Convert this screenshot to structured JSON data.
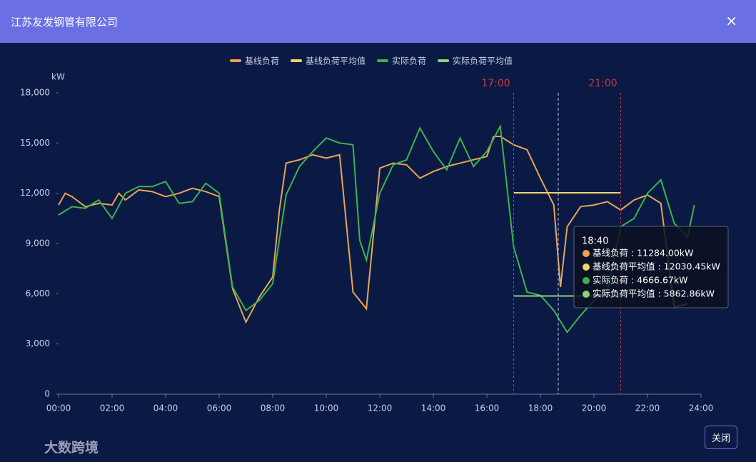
{
  "header": {
    "title": "江苏友发钢管有限公司",
    "close": "×"
  },
  "chart_data": {
    "type": "line",
    "y_unit": "kW",
    "series": [
      {
        "name": "基线负荷",
        "color": "#e8a552",
        "x": [
          0,
          0.25,
          0.5,
          1,
          1.5,
          2,
          2.25,
          2.5,
          3,
          3.5,
          4,
          4.5,
          5,
          5.5,
          6,
          6.5,
          7,
          7.5,
          8,
          8.25,
          8.5,
          9,
          9.5,
          10,
          10.5,
          11,
          11.5,
          12,
          12.5,
          13,
          13.5,
          14,
          14.5,
          15,
          15.5,
          16,
          16.25,
          16.5,
          17,
          17.5,
          18,
          18.5,
          18.75,
          19,
          19.5,
          20,
          20.5,
          21,
          21.5,
          22,
          22.5,
          23,
          23.5
        ],
        "values": [
          11300,
          12000,
          11800,
          11200,
          11400,
          11300,
          12000,
          11600,
          12200,
          12100,
          11800,
          12000,
          12300,
          12100,
          11800,
          6300,
          4300,
          5800,
          7000,
          11000,
          13800,
          14000,
          14300,
          14100,
          14300,
          6100,
          5100,
          13500,
          13800,
          13700,
          12900,
          13300,
          13600,
          13800,
          14000,
          14200,
          15400,
          15400,
          14900,
          14600,
          12900,
          11300,
          6400,
          10000,
          11200,
          11300,
          11500,
          11000,
          11600,
          11900,
          11400,
          5200,
          5400
        ]
      },
      {
        "name": "基线负荷平均值",
        "color": "#f0d46a",
        "x": [
          17,
          21
        ],
        "values": [
          12030.45,
          12030.45
        ]
      },
      {
        "name": "实际负荷",
        "color": "#3cb44b",
        "x": [
          0,
          0.5,
          1,
          1.5,
          2,
          2.5,
          3,
          3.5,
          4,
          4.5,
          5,
          5.5,
          6,
          6.5,
          7,
          7.5,
          8,
          8.5,
          9,
          9.5,
          10,
          10.5,
          11,
          11.25,
          11.5,
          12,
          12.5,
          13,
          13.5,
          14,
          14.5,
          15,
          15.5,
          16,
          16.5,
          17,
          17.5,
          18,
          18.5,
          19,
          19.5,
          20,
          20.5,
          21,
          21.5,
          22,
          22.5,
          23,
          23.5,
          23.75
        ],
        "values": [
          10700,
          11200,
          11100,
          11600,
          10500,
          12000,
          12400,
          12400,
          12700,
          11400,
          11500,
          12600,
          12000,
          6400,
          5000,
          5600,
          6600,
          11900,
          13600,
          14500,
          15300,
          15000,
          14900,
          9200,
          8000,
          12000,
          13700,
          14000,
          15900,
          14500,
          13400,
          15300,
          13600,
          14500,
          16000,
          8800,
          6100,
          5900,
          5000,
          3700,
          4700,
          5600,
          6200,
          10000,
          10500,
          12000,
          12800,
          10200,
          9400,
          11300
        ]
      },
      {
        "name": "实际负荷平均值",
        "color": "#8fd17a",
        "x": [
          17,
          21
        ],
        "values": [
          5862.86,
          5862.86
        ]
      }
    ],
    "xlim": [
      0,
      24
    ],
    "xticks": [
      {
        "value": 0,
        "label": "00:00"
      },
      {
        "value": 2,
        "label": "02:00"
      },
      {
        "value": 4,
        "label": "04:00"
      },
      {
        "value": 6,
        "label": "06:00"
      },
      {
        "value": 8,
        "label": "08:00"
      },
      {
        "value": 10,
        "label": "10:00"
      },
      {
        "value": 12,
        "label": "12:00"
      },
      {
        "value": 14,
        "label": "14:00"
      },
      {
        "value": 16,
        "label": "16:00"
      },
      {
        "value": 18,
        "label": "18:00"
      },
      {
        "value": 20,
        "label": "20:00"
      },
      {
        "value": 22,
        "label": "22:00"
      },
      {
        "value": 24,
        "label": "24:00"
      }
    ],
    "ylim": [
      0,
      18000
    ],
    "yticks": [
      0,
      {
        "value": 3000,
        "label": "3,000"
      },
      {
        "value": 6000,
        "label": "6,000"
      },
      {
        "value": 9000,
        "label": "9,000"
      },
      {
        "value": 12000,
        "label": "12,000"
      },
      {
        "value": 15000,
        "label": "15,000"
      },
      {
        "value": 18000,
        "label": "18,000"
      }
    ],
    "mark_lines": [
      {
        "value": 17,
        "label": "17:00",
        "color": "#c93a3a"
      },
      {
        "value": 21,
        "label": "21:00",
        "color": "#c93a3a"
      }
    ],
    "cursor": {
      "value": 18.667,
      "label": "18:40"
    },
    "tooltip_rows": [
      "基线负荷 : 11284.00kW",
      "基线负荷平均值 : 12030.45kW",
      "实际负荷 : 4666.67kW",
      "实际负荷平均值 : 5862.86kW"
    ]
  },
  "footer": {
    "watermark": "大数跨境",
    "button": "关闭"
  }
}
